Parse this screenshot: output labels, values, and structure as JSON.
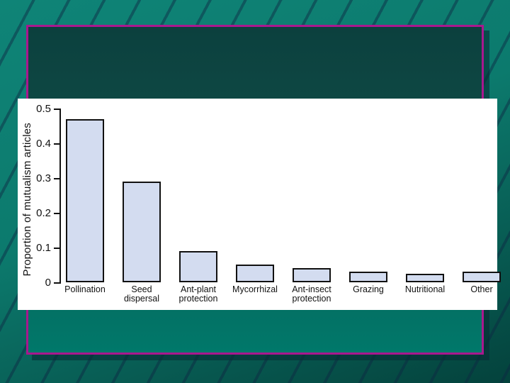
{
  "slide": {
    "background_top_color": "#0f8477",
    "background_bottom_color": "#04423c",
    "stripe_color": "rgba(13,38,66,0.45)",
    "panel_border_color": "#a9188e",
    "panel_top_color": "#0c403e",
    "panel_bottom_color": "#00786a"
  },
  "chart_data": {
    "type": "bar",
    "title": "",
    "xlabel": "",
    "ylabel": "Proportion of mutualism articles",
    "ylim": [
      0,
      0.5
    ],
    "grid": false,
    "legend": null,
    "yticks": [
      0.5,
      0.4,
      0.3,
      0.2,
      0.1,
      0
    ],
    "ytick_labels": [
      "0.5",
      "0.4",
      "0.3",
      "0.2",
      "0.1",
      "0"
    ],
    "categories": [
      "Pollination",
      "Seed dispersal",
      "Ant-plant protection",
      "Mycorrhizal",
      "Ant-insect protection",
      "Grazing",
      "Nutritional",
      "Other"
    ],
    "category_label_lines": [
      [
        "Pollination"
      ],
      [
        "Seed",
        "dispersal"
      ],
      [
        "Ant-plant",
        "protection"
      ],
      [
        "Mycorrhizal"
      ],
      [
        "Ant-insect",
        "protection"
      ],
      [
        "Grazing"
      ],
      [
        "Nutritional"
      ],
      [
        "Other"
      ]
    ],
    "values": [
      0.47,
      0.29,
      0.09,
      0.05,
      0.04,
      0.03,
      0.025,
      0.03
    ],
    "bar_fill_color": "#d3dcf0",
    "bar_border_color": "#111111"
  }
}
